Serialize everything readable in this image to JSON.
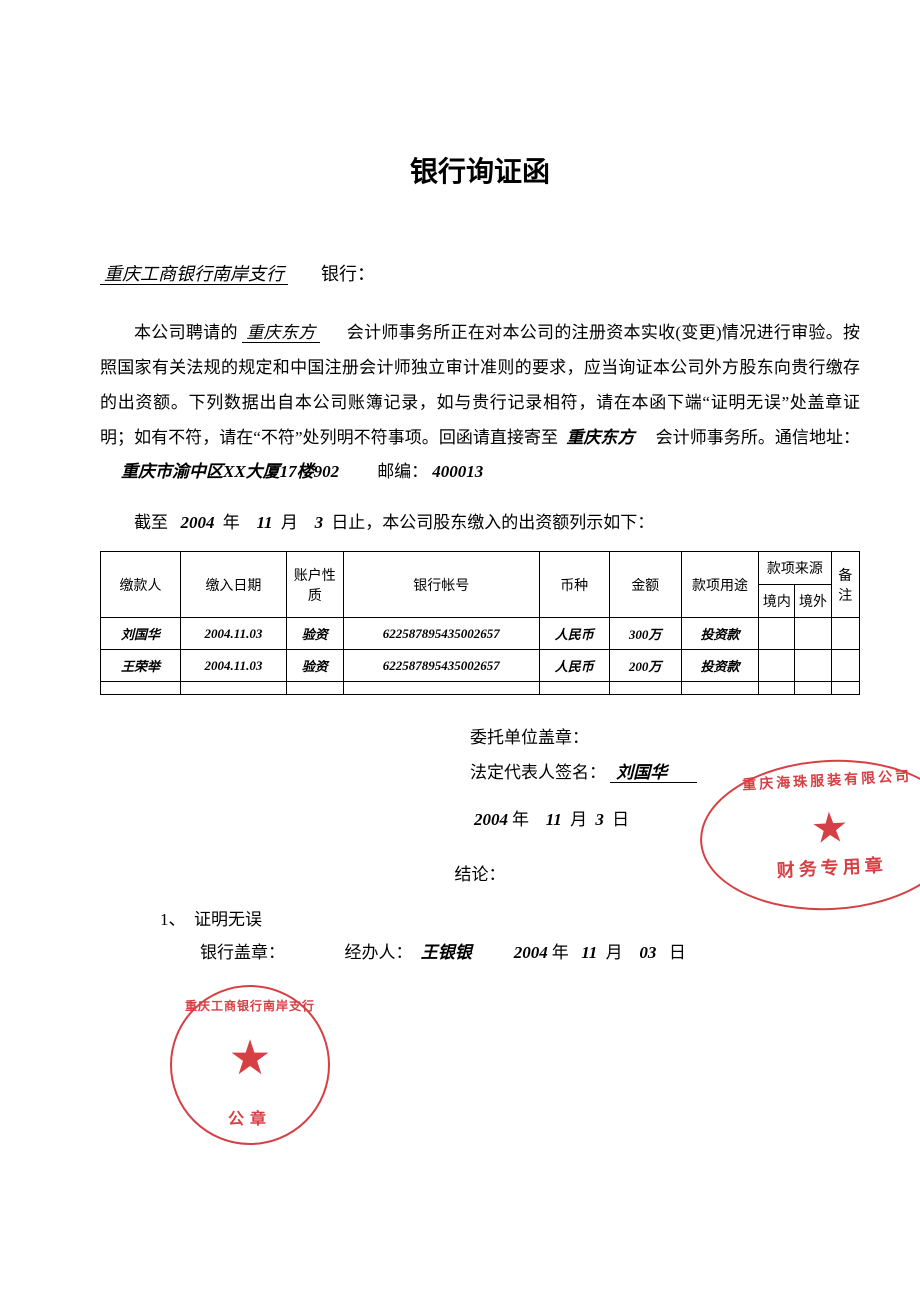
{
  "title": "银行询证函",
  "addressee": {
    "bank_name": "重庆工商银行南岸支行",
    "suffix": "银行："
  },
  "body": {
    "firm": "重庆东方",
    "p1a": "本公司聘请的",
    "p1b": "会计师事务所正在对本公司的注册资本实收(变更)情况进行审验。按照国家有关法规的规定和中国注册会计师独立审计准则的要求，应当询证本公司外方股东向贵行缴存的出资额。下列数据出自本公司账簿记录，如与贵行记录相符，请在本函下端“证明无误”处盖章证明；如有不符，请在“不符”处列明不符事项。回函请直接寄至",
    "p1c": "会计师事务所。通信地址：",
    "address": "重庆市渝中区XX大厦17楼902",
    "postcode_label": "邮编：",
    "postcode": "400013"
  },
  "cutoff": {
    "prefix": "截至",
    "year": "2004",
    "y": "年",
    "month": "11",
    "m": "月",
    "day": "3",
    "d": "日止，本公司股东缴入的出资额列示如下："
  },
  "table": {
    "headers": {
      "payer": "缴款人",
      "date": "缴入日期",
      "acct_type": "账户性质",
      "bankno": "银行帐号",
      "currency": "币种",
      "amount": "金额",
      "purpose": "款项用途",
      "source": "款项来源",
      "src_in": "境内",
      "src_out": "境外",
      "note": "备注"
    },
    "rows": [
      {
        "payer": "刘国华",
        "date": "2004.11.03",
        "acct_type": "验资",
        "bankno": "622587895435002657",
        "currency": "人民币",
        "amount": "300万",
        "purpose": "投资款",
        "src_in": "",
        "src_out": "",
        "note": ""
      },
      {
        "payer": "王荣举",
        "date": "2004.11.03",
        "acct_type": "验资",
        "bankno": "622587895435002657",
        "currency": "人民币",
        "amount": "200万",
        "purpose": "投资款",
        "src_in": "",
        "src_out": "",
        "note": ""
      },
      {
        "payer": "",
        "date": "",
        "acct_type": "",
        "bankno": "",
        "currency": "",
        "amount": "",
        "purpose": "",
        "src_in": "",
        "src_out": "",
        "note": ""
      }
    ]
  },
  "sign": {
    "entrust_label": "委托单位盖章：",
    "legal_label": "法定代表人签名：",
    "legal_name": "刘国华",
    "date_year": "2004",
    "y": "年",
    "date_month": "11",
    "m": "月",
    "date_day": "3",
    "d": "日"
  },
  "conclusion": {
    "label": "结论："
  },
  "verify": {
    "item_no": "1、",
    "item_text": "证明无误",
    "bank_seal_label": "银行盖章：",
    "handler_label": "经办人：",
    "handler_name": "王银银",
    "date_year": "2004",
    "y": "年",
    "date_month": "11",
    "m": "月",
    "date_day": "03",
    "d": "日"
  },
  "stamps": {
    "oval": {
      "ring": "重庆海珠服装有限公司",
      "mid": "财务专用章",
      "color": "#d4363a"
    },
    "round": {
      "ring": "重庆工商银行南岸支行",
      "mid": "公章",
      "color": "#d4363a"
    }
  }
}
